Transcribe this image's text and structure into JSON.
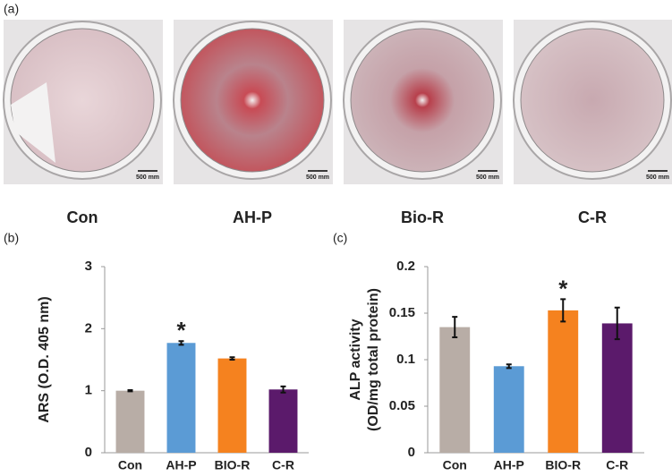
{
  "panel_a": {
    "label": "(a)",
    "dishes": [
      {
        "name": "Con",
        "scale_bar": "500 mm"
      },
      {
        "name": "AH-P",
        "scale_bar": "500 mm"
      },
      {
        "name": "Bio-R",
        "scale_bar": "500 mm"
      },
      {
        "name": "C-R",
        "scale_bar": "500 mm"
      }
    ]
  },
  "chart_data": [
    {
      "type": "bar",
      "panel": "(b)",
      "y_label": "ARS (O.D. 405 nm)",
      "categories": [
        "Con",
        "AH-P",
        "BIO-R",
        "C-R"
      ],
      "values": [
        1.0,
        1.77,
        1.52,
        1.02
      ],
      "errors": [
        0.01,
        0.03,
        0.02,
        0.05
      ],
      "colors": [
        "#b8ada6",
        "#5b9bd5",
        "#f5821f",
        "#5b1a6b"
      ],
      "ylim": [
        0,
        3
      ],
      "yticks": [
        0,
        1,
        2,
        3
      ],
      "annotations": [
        {
          "text": "*",
          "category": "AH-P"
        }
      ]
    },
    {
      "type": "bar",
      "panel": "(c)",
      "y_label": [
        "ALP activity",
        "(OD/mg total protein)"
      ],
      "categories": [
        "Con",
        "AH-P",
        "BIO-R",
        "C-R"
      ],
      "values": [
        0.135,
        0.093,
        0.153,
        0.139
      ],
      "errors": [
        0.011,
        0.002,
        0.012,
        0.017
      ],
      "colors": [
        "#b8ada6",
        "#5b9bd5",
        "#f5821f",
        "#5b1a6b"
      ],
      "ylim": [
        0,
        0.2
      ],
      "yticks": [
        0,
        0.05,
        0.1,
        0.15,
        0.2
      ],
      "annotations": [
        {
          "text": "*",
          "category": "BIO-R"
        }
      ]
    }
  ]
}
